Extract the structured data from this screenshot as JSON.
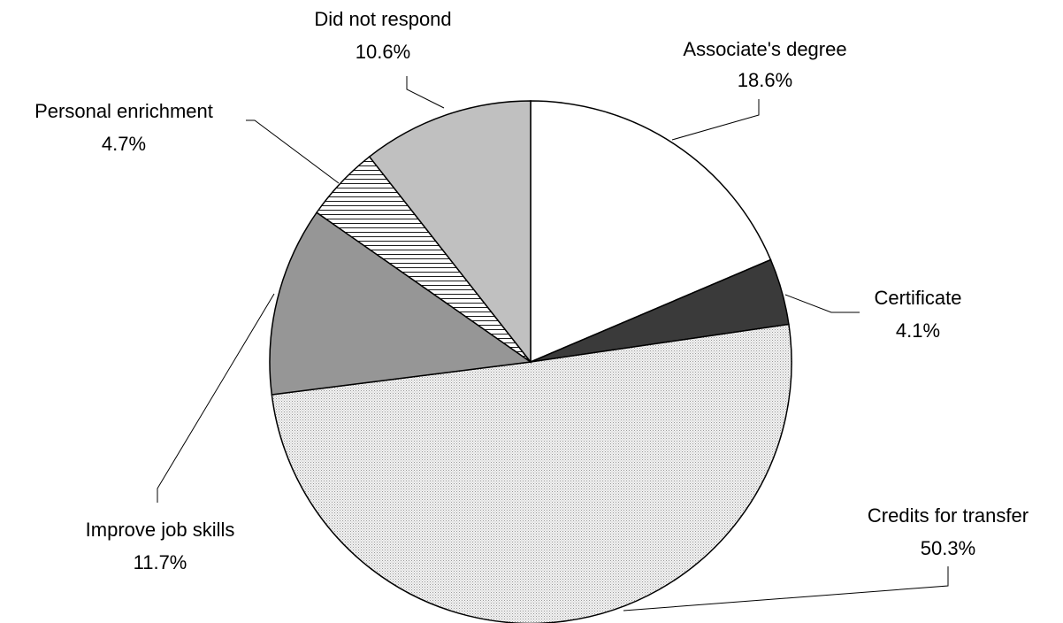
{
  "chart_data": {
    "type": "pie",
    "start_angle_deg": 0,
    "direction": "clockwise",
    "slices": [
      {
        "label": "Associate's degree",
        "value": 18.6,
        "value_label": "18.6%",
        "color": "#ffffff",
        "fill": "solid"
      },
      {
        "label": "Certificate",
        "value": 4.1,
        "value_label": "4.1%",
        "color": "#3a3a3a",
        "fill": "solid"
      },
      {
        "label": "Credits for transfer",
        "value": 50.3,
        "value_label": "50.3%",
        "color": "#e6e6e6",
        "fill": "dotted"
      },
      {
        "label": "Improve job skills",
        "value": 11.7,
        "value_label": "11.7%",
        "color": "#969696",
        "fill": "solid"
      },
      {
        "label": "Personal enrichment",
        "value": 4.7,
        "value_label": "4.7%",
        "color": "#ffffff",
        "fill": "horizontal-lines"
      },
      {
        "label": "Did not respond",
        "value": 10.6,
        "value_label": "10.6%",
        "color": "#c0c0c0",
        "fill": "solid"
      }
    ]
  }
}
